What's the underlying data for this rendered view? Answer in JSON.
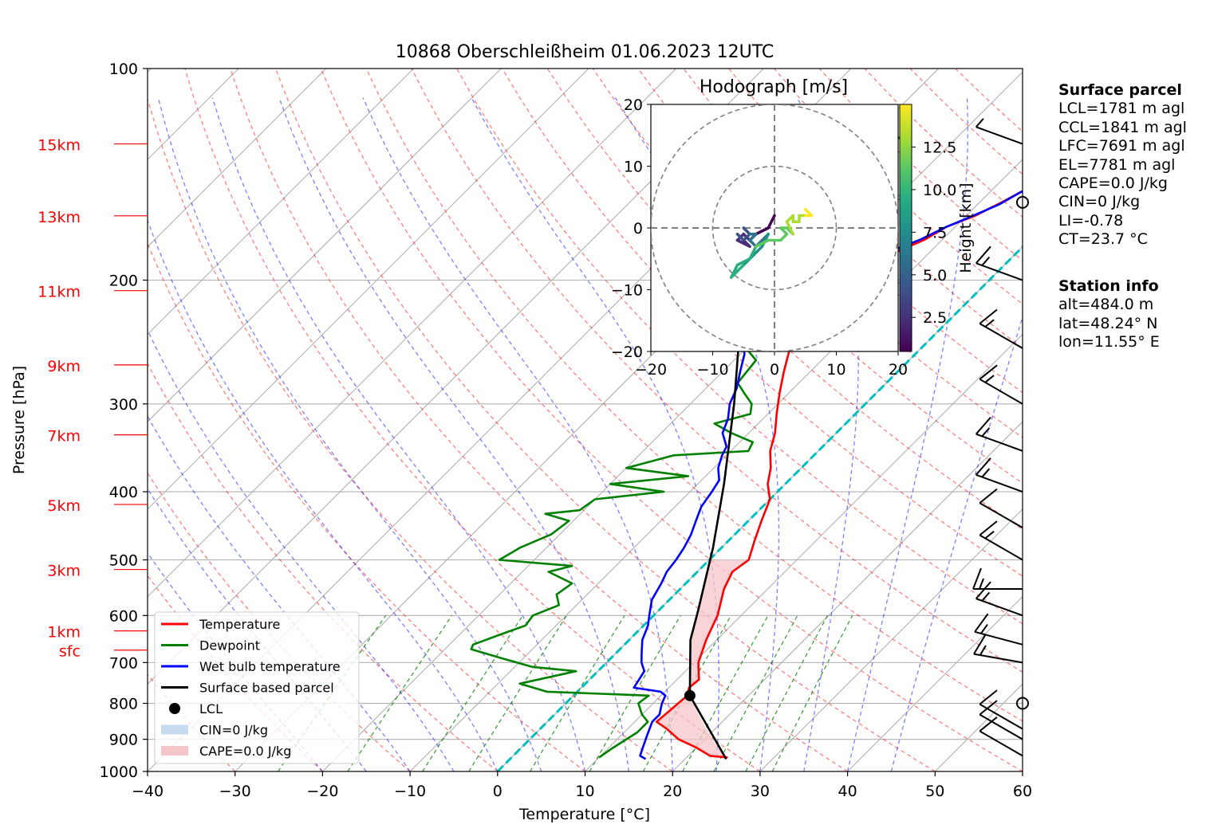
{
  "chart_data": {
    "type": "line",
    "title": "10868 Oberschleißheim 01.06.2023 12UTC",
    "xlabel": "Temperature [°C]",
    "ylabel": "Pressure [hPa]",
    "xlim": [
      -40,
      60
    ],
    "ylim": [
      1000,
      100
    ],
    "y_scale": "log",
    "grid": true,
    "xticks": [
      "−40",
      "−30",
      "−20",
      "−10",
      "0",
      "10",
      "20",
      "30",
      "40",
      "50",
      "60"
    ],
    "yticks": [
      "100",
      "200",
      "300",
      "400",
      "500",
      "600",
      "700",
      "800",
      "900",
      "1000"
    ],
    "height_labels": [
      {
        "label": "15km",
        "p": 128
      },
      {
        "label": "13km",
        "p": 162
      },
      {
        "label": "11km",
        "p": 207
      },
      {
        "label": "9km",
        "p": 264
      },
      {
        "label": "7km",
        "p": 332
      },
      {
        "label": "5km",
        "p": 417
      },
      {
        "label": "3km",
        "p": 516
      },
      {
        "label": "1km",
        "p": 631
      },
      {
        "label": "sfc",
        "p": 672
      }
    ],
    "series": [
      {
        "name": "Temperature",
        "color": "#ff0000",
        "points": [
          [
            24.7,
            955
          ],
          [
            22.5,
            950
          ],
          [
            20,
            925
          ],
          [
            17,
            900
          ],
          [
            14.5,
            870
          ],
          [
            12.5,
            850
          ],
          [
            13,
            780
          ],
          [
            12.3,
            760
          ],
          [
            12.5,
            740
          ],
          [
            10.5,
            700
          ],
          [
            8.8,
            650
          ],
          [
            7.3,
            600
          ],
          [
            5,
            550
          ],
          [
            4,
            520
          ],
          [
            4.5,
            500
          ],
          [
            3,
            470
          ],
          [
            1.5,
            440
          ],
          [
            0,
            410
          ],
          [
            -2,
            390
          ],
          [
            -3.5,
            370
          ],
          [
            -5.5,
            350
          ],
          [
            -7,
            330
          ],
          [
            -9,
            310
          ],
          [
            -11,
            290
          ],
          [
            -13,
            270
          ],
          [
            -15,
            250
          ],
          [
            -16.5,
            235
          ],
          [
            -17.5,
            225
          ],
          [
            -18,
            220
          ],
          [
            -18,
            212
          ],
          [
            -19,
            205
          ],
          [
            -18.8,
            200
          ],
          [
            -17,
            194
          ],
          [
            -15,
            188
          ],
          [
            -13.5,
            181
          ],
          [
            -12,
            175
          ],
          [
            -11,
            168
          ],
          [
            -9,
            162
          ],
          [
            -7.5,
            155
          ],
          [
            -6.5,
            150
          ],
          [
            -5.5,
            145
          ],
          [
            -4.5,
            140
          ],
          [
            -3.5,
            135
          ],
          [
            -2.8,
            131
          ],
          [
            -2,
            127
          ]
        ]
      },
      {
        "name": "Dewpoint",
        "color": "#008000",
        "points": [
          [
            10,
            955
          ],
          [
            10.5,
            925
          ],
          [
            11.5,
            880
          ],
          [
            11.5,
            850
          ],
          [
            10,
            830
          ],
          [
            8.3,
            800
          ],
          [
            8.6,
            780
          ],
          [
            -3.5,
            770
          ],
          [
            -7.5,
            750
          ],
          [
            -2.5,
            720
          ],
          [
            -8,
            710
          ],
          [
            -12.5,
            690
          ],
          [
            -17,
            670
          ],
          [
            -17.3,
            660
          ],
          [
            -15.5,
            640
          ],
          [
            -13.5,
            620
          ],
          [
            -13.8,
            600
          ],
          [
            -12,
            580
          ],
          [
            -13.5,
            560
          ],
          [
            -13,
            540
          ],
          [
            -17,
            520
          ],
          [
            -15,
            510
          ],
          [
            -24,
            500
          ],
          [
            -23,
            480
          ],
          [
            -21,
            460
          ],
          [
            -20.5,
            440
          ],
          [
            -24,
            430
          ],
          [
            -20.5,
            425
          ],
          [
            -20,
            410
          ],
          [
            -13,
            400
          ],
          [
            -20,
            390
          ],
          [
            -12,
            380
          ],
          [
            -20,
            370
          ],
          [
            -16,
            355
          ],
          [
            -8,
            350
          ],
          [
            -8.5,
            340
          ],
          [
            -12,
            330
          ],
          [
            -15,
            320
          ],
          [
            -12,
            310
          ],
          [
            -13,
            300
          ],
          [
            -15,
            290
          ],
          [
            -17,
            280
          ],
          [
            -17.5,
            260
          ],
          [
            -20,
            250
          ],
          [
            -21,
            240
          ],
          [
            -22,
            220
          ],
          [
            -23.5,
            210
          ],
          [
            -22,
            200
          ],
          [
            -25,
            190
          ],
          [
            -27,
            180
          ],
          [
            -29,
            170
          ],
          [
            -30.5,
            160
          ],
          [
            -30,
            150
          ],
          [
            -29,
            140
          ],
          [
            -27.5,
            130
          ],
          [
            -26.5,
            125
          ]
        ]
      },
      {
        "name": "Wet bulb temperature",
        "color": "#0000ff",
        "points": [
          [
            15.5,
            960
          ],
          [
            14.5,
            950
          ],
          [
            14,
            930
          ],
          [
            13,
            890
          ],
          [
            12,
            850
          ],
          [
            12,
            830
          ],
          [
            11,
            800
          ],
          [
            10.5,
            780
          ],
          [
            9.5,
            770
          ],
          [
            6,
            760
          ],
          [
            5.3,
            720
          ],
          [
            4,
            700
          ],
          [
            3,
            680
          ],
          [
            1.5,
            650
          ],
          [
            0.5,
            620
          ],
          [
            -0.5,
            600
          ],
          [
            -2,
            570
          ],
          [
            -2.8,
            540
          ],
          [
            -3.5,
            520
          ],
          [
            -3.8,
            500
          ],
          [
            -4.3,
            480
          ],
          [
            -5,
            460
          ],
          [
            -6,
            440
          ],
          [
            -7,
            420
          ],
          [
            -7.5,
            400
          ],
          [
            -8,
            385
          ],
          [
            -9.5,
            370
          ],
          [
            -10.5,
            355
          ],
          [
            -11,
            345
          ],
          [
            -13,
            330
          ],
          [
            -14,
            315
          ],
          [
            -15.5,
            300
          ],
          [
            -16.5,
            285
          ],
          [
            -18,
            270
          ],
          [
            -19.5,
            255
          ],
          [
            -21,
            245
          ],
          [
            -21.5,
            235
          ],
          [
            -21,
            225
          ],
          [
            -21.5,
            215
          ],
          [
            -20.5,
            205
          ],
          [
            -19.5,
            200
          ],
          [
            -18,
            192
          ],
          [
            -16.5,
            186
          ],
          [
            -14,
            180
          ],
          [
            -12.5,
            175
          ],
          [
            -11,
            168
          ],
          [
            -9.5,
            163
          ],
          [
            -7.5,
            156
          ],
          [
            -6.5,
            150
          ],
          [
            -5,
            145
          ],
          [
            -4.5,
            140
          ],
          [
            -3.5,
            135
          ],
          [
            -2.5,
            130
          ],
          [
            -2.5,
            127
          ]
        ]
      },
      {
        "name": "Surface based parcel",
        "color": "#000000",
        "points": [
          [
            24.7,
            960
          ],
          [
            13.3,
            780
          ],
          [
            7,
            650
          ],
          [
            4.5,
            590
          ],
          [
            -1,
            480
          ],
          [
            -7,
            390
          ],
          [
            -15,
            300
          ],
          [
            -25,
            220
          ],
          [
            -35,
            170
          ],
          [
            -42,
            140
          ],
          [
            -47,
            128
          ]
        ]
      }
    ],
    "lcl": {
      "name": "LCL",
      "t": 13.3,
      "p": 780
    },
    "legend": {
      "placement": "lower-left",
      "entries": [
        {
          "label": "Temperature",
          "kind": "line",
          "color": "#ff0000"
        },
        {
          "label": "Dewpoint",
          "kind": "line",
          "color": "#008000"
        },
        {
          "label": "Wet bulb temperature",
          "kind": "line",
          "color": "#0000ff"
        },
        {
          "label": "Surface based parcel",
          "kind": "line",
          "color": "#000000"
        },
        {
          "label": "LCL",
          "kind": "dot",
          "color": "#000000"
        },
        {
          "label": "CIN=0 J/kg",
          "kind": "patch",
          "color": "#c6dbef"
        },
        {
          "label": "CAPE=0.0 J/kg",
          "kind": "patch",
          "color": "#f5c6c9"
        }
      ]
    },
    "hodograph": {
      "title": "Hodograph [m/s]",
      "xlim": [
        -20,
        20
      ],
      "ylim": [
        -20,
        20
      ],
      "xticks": [
        "−20",
        "−10",
        "0",
        "10",
        "20"
      ],
      "yticks": [
        "20",
        "10",
        "0",
        "−10",
        "−20"
      ],
      "rings": [
        10,
        20
      ],
      "colorbar": {
        "label": "Height [km]",
        "ticks": [
          "12.5",
          "10.0",
          "7.5",
          "5.0",
          "2.5"
        ],
        "tick_values": [
          12.5,
          10,
          7.5,
          5,
          2.5
        ],
        "min": 0.5,
        "max": 15
      },
      "trace": [
        [
          0,
          2,
          0.5
        ],
        [
          -1,
          0,
          0.8
        ],
        [
          -3,
          -1,
          1.2
        ],
        [
          -4,
          -2,
          1.6
        ],
        [
          -5,
          -1,
          2.0
        ],
        [
          -6,
          -2,
          2.4
        ],
        [
          -4,
          -3,
          2.8
        ],
        [
          -5,
          -2,
          3.2
        ],
        [
          -6,
          -1,
          3.6
        ],
        [
          -5,
          -2,
          4.0
        ],
        [
          -4,
          -1,
          4.4
        ],
        [
          -5,
          0,
          4.8
        ],
        [
          -4,
          -1,
          5.2
        ],
        [
          -3,
          -1,
          5.6
        ],
        [
          -4,
          -2,
          6.0
        ],
        [
          -3,
          -3,
          6.4
        ],
        [
          -2,
          -2,
          6.8
        ],
        [
          -1,
          -1,
          7.2
        ],
        [
          -2,
          -3,
          7.6
        ],
        [
          -3,
          -4,
          8.0
        ],
        [
          -4,
          -5,
          8.4
        ],
        [
          -5,
          -6,
          8.8
        ],
        [
          -6,
          -7,
          9.2
        ],
        [
          -7,
          -8,
          9.6
        ],
        [
          -6,
          -6,
          10.0
        ],
        [
          -4,
          -5,
          10.3
        ],
        [
          -3,
          -3,
          10.6
        ],
        [
          -1,
          -2,
          10.9
        ],
        [
          1,
          -2,
          11.2
        ],
        [
          2,
          -1,
          11.5
        ],
        [
          1,
          0,
          11.8
        ],
        [
          2,
          0,
          12.1
        ],
        [
          3,
          -1,
          12.4
        ],
        [
          2,
          1,
          12.7
        ],
        [
          3,
          2,
          13.0
        ],
        [
          3,
          1,
          13.3
        ],
        [
          4,
          1,
          13.6
        ],
        [
          4,
          2,
          13.9
        ],
        [
          5,
          2,
          14.2
        ],
        [
          6,
          2,
          14.5
        ],
        [
          5,
          3,
          14.8
        ]
      ]
    },
    "wind_barbs": [
      {
        "p": 128,
        "dir": 290,
        "speed": 5
      },
      {
        "p": 155,
        "dir": 0,
        "speed": 0
      },
      {
        "p": 200,
        "dir": 290,
        "speed": 15
      },
      {
        "p": 250,
        "dir": 300,
        "speed": 15
      },
      {
        "p": 300,
        "dir": 300,
        "speed": 15
      },
      {
        "p": 350,
        "dir": 290,
        "speed": 15
      },
      {
        "p": 400,
        "dir": 290,
        "speed": 15
      },
      {
        "p": 450,
        "dir": 300,
        "speed": 10
      },
      {
        "p": 500,
        "dir": 300,
        "speed": 15
      },
      {
        "p": 550,
        "dir": 270,
        "speed": 15
      },
      {
        "p": 600,
        "dir": 290,
        "speed": 15
      },
      {
        "p": 660,
        "dir": 285,
        "speed": 15
      },
      {
        "p": 700,
        "dir": 280,
        "speed": 15
      },
      {
        "p": 800,
        "dir": 0,
        "speed": 0
      },
      {
        "p": 870,
        "dir": 300,
        "speed": 10
      },
      {
        "p": 900,
        "dir": 300,
        "speed": 10
      },
      {
        "p": 950,
        "dir": 300,
        "speed": 10
      }
    ]
  },
  "info": {
    "surface_parcel": {
      "title": "Surface parcel",
      "lines": [
        "LCL=1781 m agl",
        "CCL=1841 m agl",
        "LFC=7691 m agl",
        "EL=7781 m agl",
        "CAPE=0.0 J/kg",
        "CIN=0 J/kg",
        "LI=-0.78",
        "CT=23.7 °C"
      ]
    },
    "station_info": {
      "title": "Station info",
      "lines": [
        "alt=484.0 m",
        "lat=48.24° N",
        "lon=11.55° E"
      ]
    }
  }
}
